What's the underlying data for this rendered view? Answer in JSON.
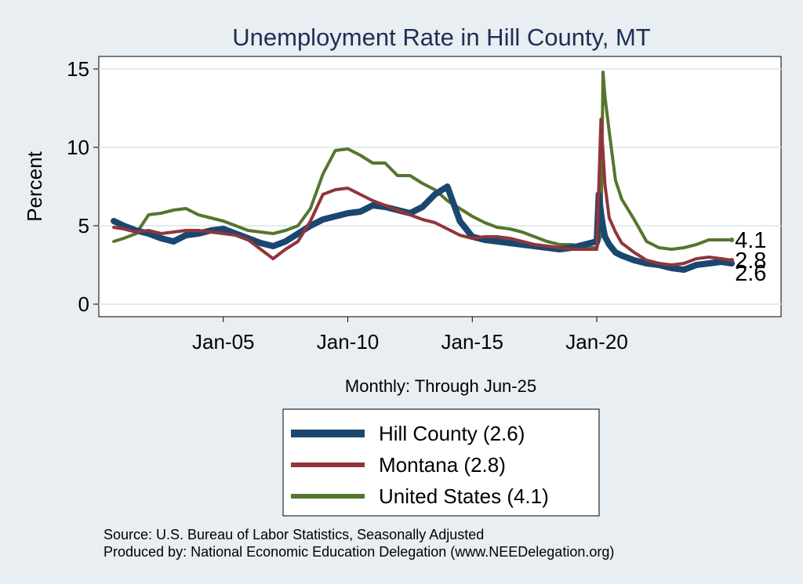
{
  "chart_data": {
    "type": "line",
    "title": "Unemployment Rate in Hill  County, MT",
    "xlabel": "Monthly: Through Jun-25",
    "ylabel": "Percent",
    "xlim": [
      2000.0,
      2027.4
    ],
    "ylim": [
      -0.8,
      15.8
    ],
    "xticks": [
      {
        "value": 2005.0,
        "label": "Jan-05"
      },
      {
        "value": 2010.0,
        "label": "Jan-10"
      },
      {
        "value": 2015.0,
        "label": "Jan-15"
      },
      {
        "value": 2020.0,
        "label": "Jan-20"
      }
    ],
    "yticks": [
      {
        "value": 0,
        "label": "0"
      },
      {
        "value": 5,
        "label": "5"
      },
      {
        "value": 10,
        "label": "10"
      },
      {
        "value": 15,
        "label": "15"
      }
    ],
    "grid": "horizontal",
    "legend_position": "bottom",
    "series": [
      {
        "name": "Hill  County (2.6)",
        "color": "#1a476f",
        "end_value": "2.6",
        "x": [
          2000.6,
          2001.0,
          2001.5,
          2002.0,
          2002.5,
          2003.0,
          2003.5,
          2004.0,
          2004.5,
          2005.0,
          2005.5,
          2006.0,
          2006.5,
          2007.0,
          2007.5,
          2008.0,
          2008.5,
          2009.0,
          2009.5,
          2010.0,
          2010.5,
          2011.0,
          2011.5,
          2012.0,
          2012.5,
          2013.0,
          2013.5,
          2014.0,
          2014.5,
          2015.0,
          2015.5,
          2016.0,
          2016.5,
          2017.0,
          2017.5,
          2018.0,
          2018.5,
          2019.0,
          2019.5,
          2020.0,
          2020.08,
          2020.17,
          2020.25,
          2020.33,
          2020.5,
          2020.75,
          2021.0,
          2021.5,
          2022.0,
          2022.5,
          2023.0,
          2023.5,
          2024.0,
          2024.5,
          2025.0,
          2025.42
        ],
        "y": [
          5.3,
          5.0,
          4.7,
          4.5,
          4.2,
          4.0,
          4.4,
          4.5,
          4.7,
          4.8,
          4.5,
          4.2,
          3.9,
          3.7,
          4.0,
          4.5,
          5.0,
          5.4,
          5.6,
          5.8,
          5.9,
          6.3,
          6.2,
          6.0,
          5.8,
          6.2,
          7.0,
          7.5,
          5.3,
          4.3,
          4.1,
          4.0,
          3.9,
          3.8,
          3.7,
          3.6,
          3.5,
          3.6,
          3.8,
          4.0,
          7.0,
          5.8,
          4.9,
          4.3,
          3.8,
          3.3,
          3.1,
          2.8,
          2.6,
          2.5,
          2.3,
          2.2,
          2.5,
          2.6,
          2.7,
          2.6
        ]
      },
      {
        "name": "Montana (2.8)",
        "color": "#90353b",
        "end_value": "2.8",
        "x": [
          2000.6,
          2001.0,
          2001.5,
          2002.0,
          2002.5,
          2003.0,
          2003.5,
          2004.0,
          2004.5,
          2005.0,
          2005.5,
          2006.0,
          2006.5,
          2007.0,
          2007.5,
          2008.0,
          2008.5,
          2009.0,
          2009.5,
          2010.0,
          2010.5,
          2011.0,
          2011.5,
          2012.0,
          2012.5,
          2013.0,
          2013.5,
          2014.0,
          2014.5,
          2015.0,
          2015.5,
          2016.0,
          2016.5,
          2017.0,
          2017.5,
          2018.0,
          2018.5,
          2019.0,
          2019.5,
          2020.0,
          2020.17,
          2020.33,
          2020.5,
          2020.75,
          2021.0,
          2021.5,
          2022.0,
          2022.5,
          2023.0,
          2023.5,
          2024.0,
          2024.5,
          2025.0,
          2025.42
        ],
        "y": [
          4.9,
          4.8,
          4.6,
          4.7,
          4.5,
          4.6,
          4.7,
          4.7,
          4.6,
          4.5,
          4.4,
          4.1,
          3.5,
          2.9,
          3.5,
          4.0,
          5.3,
          7.0,
          7.3,
          7.4,
          7.0,
          6.6,
          6.3,
          6.0,
          5.7,
          5.4,
          5.2,
          4.8,
          4.4,
          4.2,
          4.3,
          4.3,
          4.2,
          4.0,
          3.8,
          3.7,
          3.6,
          3.5,
          3.5,
          3.5,
          11.8,
          7.6,
          5.5,
          4.6,
          3.9,
          3.3,
          2.8,
          2.6,
          2.5,
          2.6,
          2.9,
          3.0,
          2.9,
          2.8
        ]
      },
      {
        "name": "United States (4.1)",
        "color": "#55752f",
        "end_value": "4.1",
        "x": [
          2000.6,
          2001.0,
          2001.5,
          2002.0,
          2002.5,
          2003.0,
          2003.5,
          2004.0,
          2004.5,
          2005.0,
          2005.5,
          2006.0,
          2006.5,
          2007.0,
          2007.5,
          2008.0,
          2008.5,
          2009.0,
          2009.5,
          2010.0,
          2010.5,
          2011.0,
          2011.5,
          2012.0,
          2012.5,
          2013.0,
          2013.5,
          2014.0,
          2014.5,
          2015.0,
          2015.5,
          2016.0,
          2016.5,
          2017.0,
          2017.5,
          2018.0,
          2018.5,
          2019.0,
          2019.5,
          2020.0,
          2020.17,
          2020.25,
          2020.33,
          2020.5,
          2020.75,
          2021.0,
          2021.5,
          2022.0,
          2022.5,
          2023.0,
          2023.5,
          2024.0,
          2024.5,
          2025.0,
          2025.42
        ],
        "y": [
          4.0,
          4.2,
          4.5,
          5.7,
          5.8,
          6.0,
          6.1,
          5.7,
          5.5,
          5.3,
          5.0,
          4.7,
          4.6,
          4.5,
          4.7,
          5.0,
          6.1,
          8.3,
          9.8,
          9.9,
          9.5,
          9.0,
          9.0,
          8.2,
          8.2,
          7.7,
          7.3,
          6.6,
          6.1,
          5.6,
          5.2,
          4.9,
          4.8,
          4.6,
          4.3,
          4.0,
          3.8,
          3.8,
          3.6,
          3.6,
          4.4,
          14.8,
          13.2,
          11.0,
          7.9,
          6.7,
          5.4,
          4.0,
          3.6,
          3.5,
          3.6,
          3.8,
          4.1,
          4.1,
          4.1
        ]
      }
    ]
  },
  "source_line_1": "Source: U.S. Bureau of Labor Statistics, Seasonally Adjusted",
  "source_line_2": "Produced by: National Economic Education Delegation (www.NEEDelegation.org)"
}
